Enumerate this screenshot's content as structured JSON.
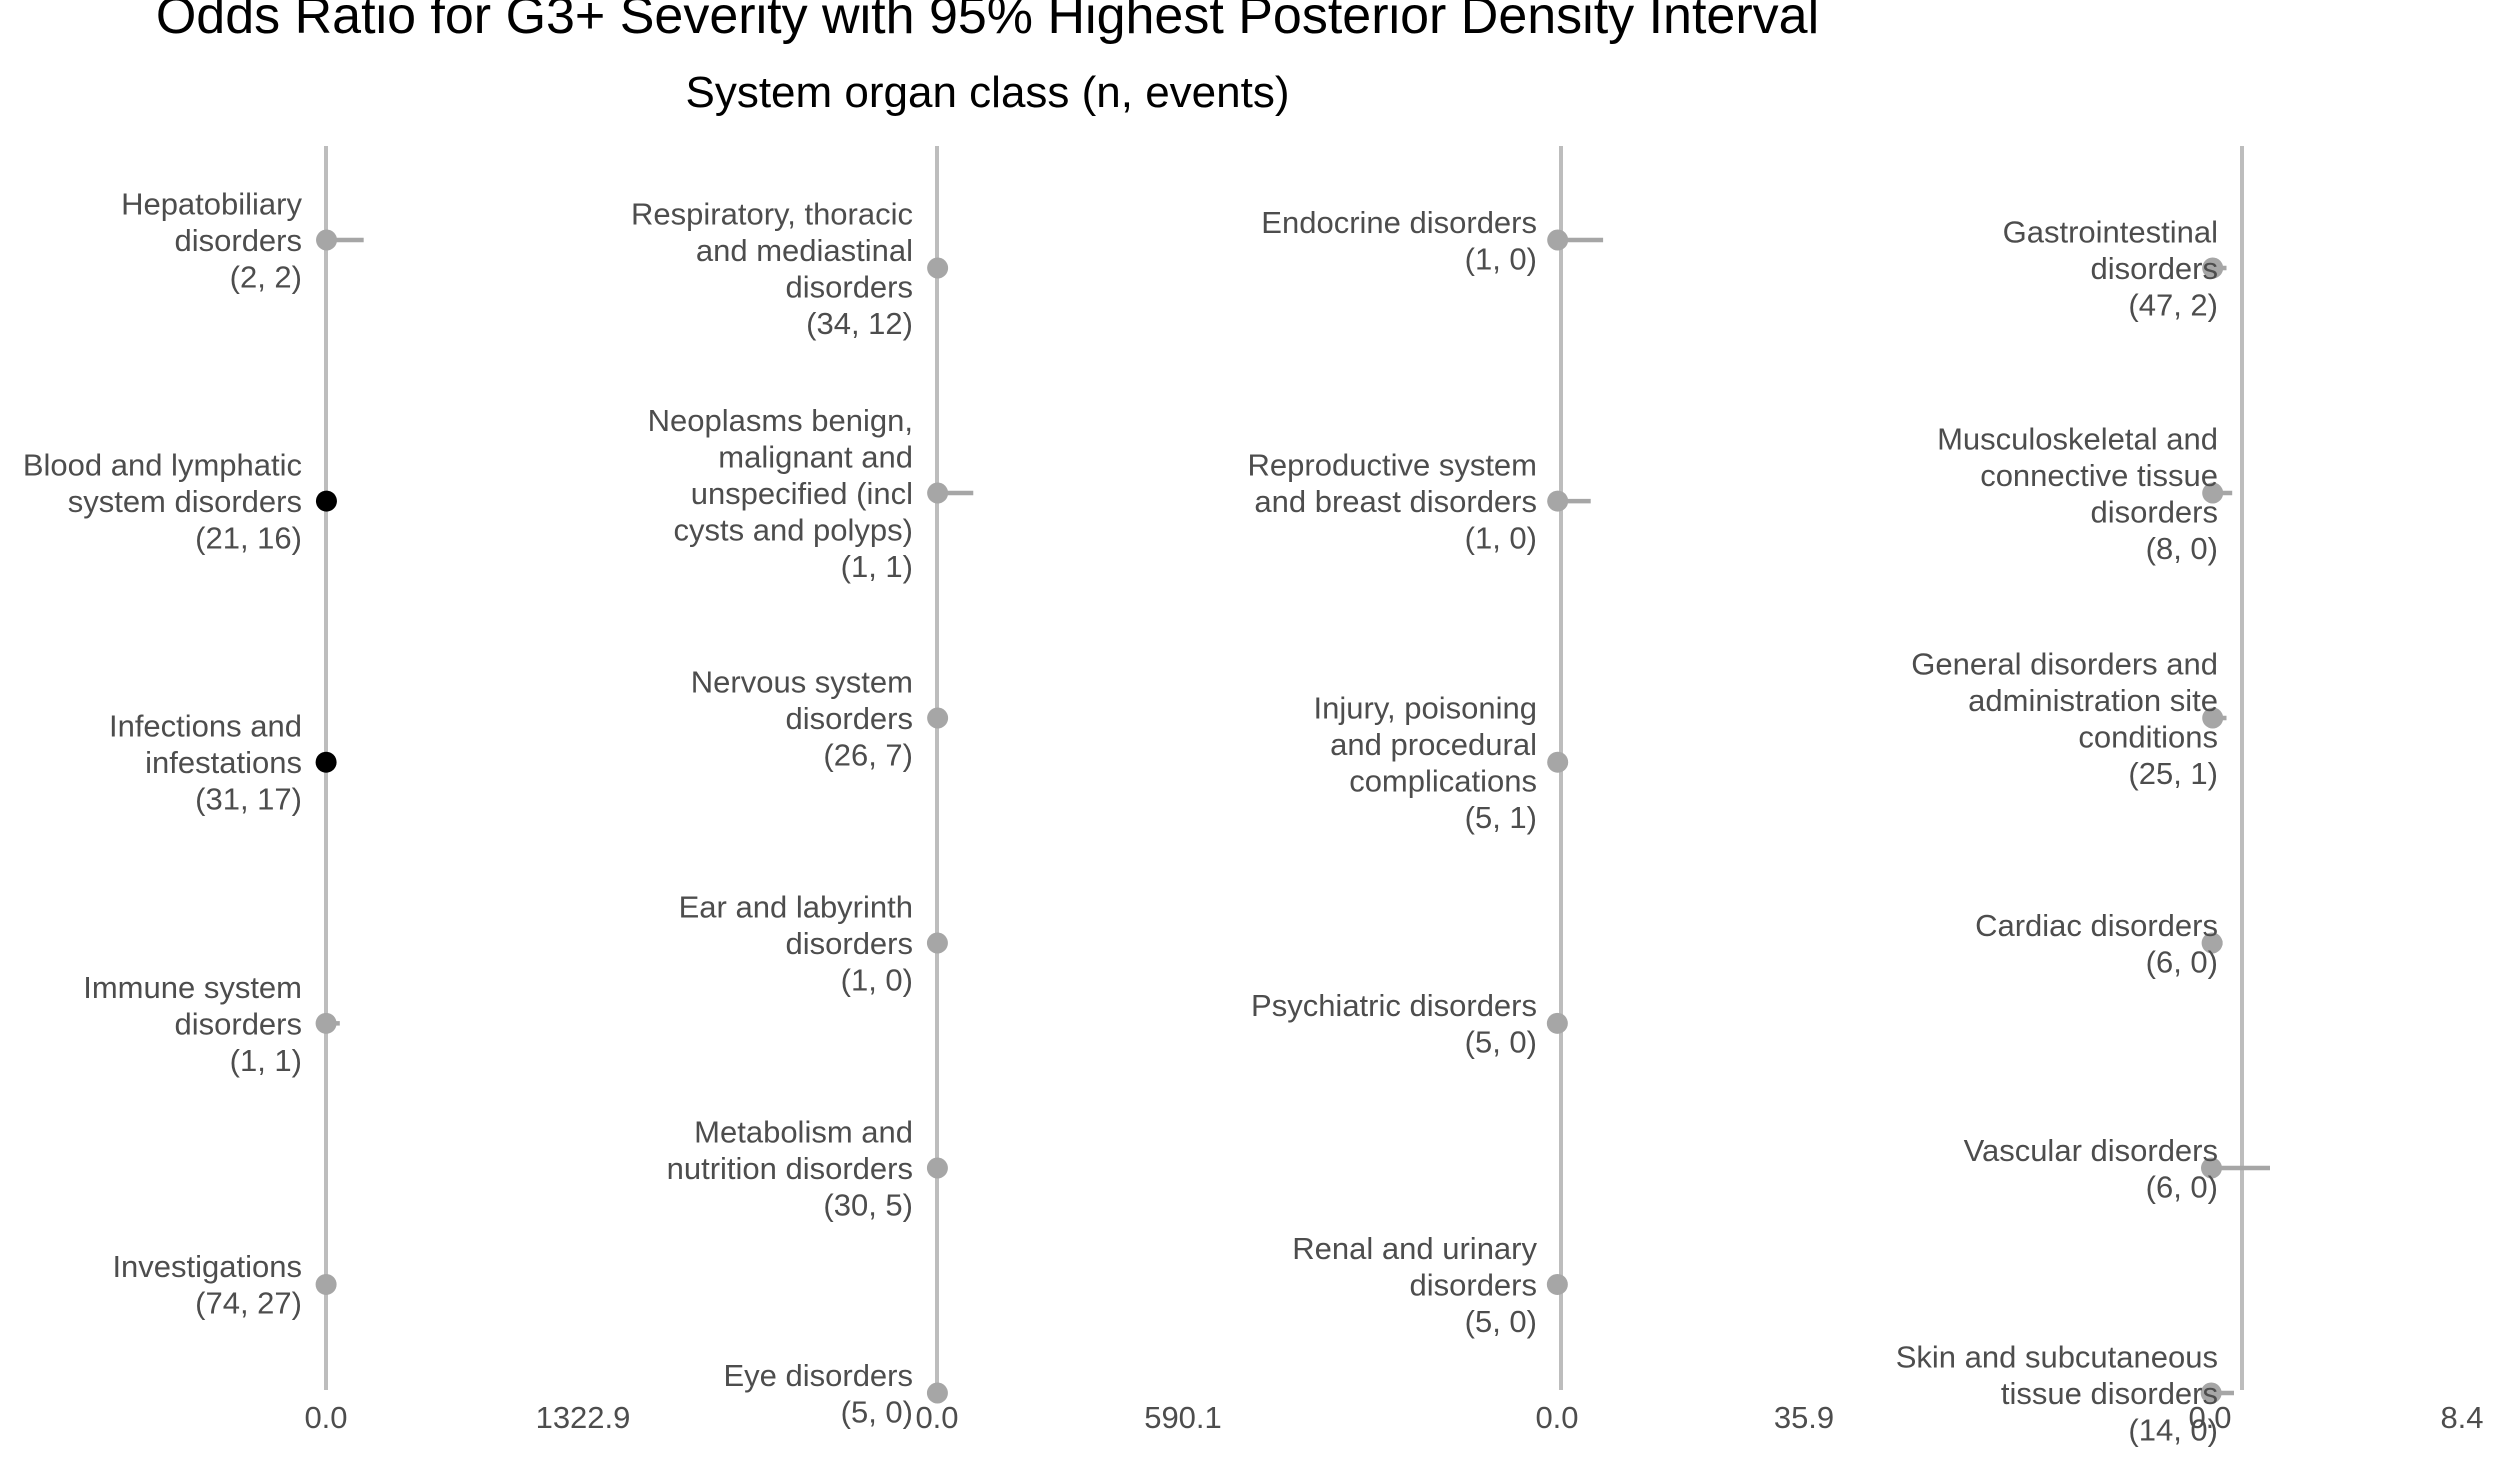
{
  "chart_data": {
    "type": "forest",
    "title": "Odds Ratio for G3+ Severity with 95% Highest Posterior Density Interval",
    "subtitle": "System organ class (n, events)",
    "grid": false,
    "colors": {
      "highlight": "#000000",
      "default": "#a6a6a6",
      "axis": "#bdbdbd",
      "label": "#4d4d4d"
    },
    "panels": [
      {
        "xlim": [
          0.0,
          1322.9
        ],
        "tick_labels": [
          "0.0",
          "1322.9"
        ],
        "items": [
          {
            "label": [
              "Hepatobiliary",
              "disorders",
              "(2, 2)"
            ],
            "or": 2.8,
            "lo": 0,
            "hi": 194.0,
            "highlight": false
          },
          {
            "label": [
              "Blood and lymphatic",
              "system disorders",
              "(21, 16)"
            ],
            "or": 2.3,
            "lo": 0,
            "hi": 25.0,
            "highlight": true
          },
          {
            "label": [
              "Infections and",
              "infestations",
              "(31, 17)"
            ],
            "or": 0.5,
            "lo": 0,
            "hi": 8.0,
            "highlight": true
          },
          {
            "label": [
              "Immune system",
              "disorders",
              "(1, 1)"
            ],
            "or": 0.5,
            "lo": 0,
            "hi": 71.0,
            "highlight": false
          },
          {
            "label": [
              "Investigations",
              "(74, 27)"
            ],
            "or": 0.5,
            "lo": 0,
            "hi": 2.0,
            "highlight": false
          }
        ]
      },
      {
        "xlim": [
          0.0,
          590.1
        ],
        "tick_labels": [
          "0.0",
          "590.1"
        ],
        "items": [
          {
            "label": [
              "Respiratory, thoracic",
              "and mediastinal",
              "disorders",
              "(34, 12)"
            ],
            "or": 1.5,
            "lo": 0,
            "hi": 3.0,
            "highlight": false
          },
          {
            "label": [
              "Neoplasms benign,",
              "malignant and",
              "unspecified (incl",
              "cysts and polyps)",
              "(1, 1)"
            ],
            "or": 1.5,
            "lo": 0,
            "hi": 87.0,
            "highlight": false
          },
          {
            "label": [
              "Nervous system",
              "disorders",
              "(26, 7)"
            ],
            "or": 1.5,
            "lo": 0,
            "hi": 3.0,
            "highlight": false
          },
          {
            "label": [
              "Ear and labyrinth",
              "disorders",
              "(1, 0)"
            ],
            "or": 1.0,
            "lo": 0,
            "hi": 10.0,
            "highlight": false
          },
          {
            "label": [
              "Metabolism and",
              "nutrition disorders",
              "(30, 5)"
            ],
            "or": 1.0,
            "lo": 0,
            "hi": 2.0,
            "highlight": false
          },
          {
            "label": [
              "Eye disorders",
              "(5, 0)"
            ],
            "or": 1.0,
            "lo": 0,
            "hi": 2.0,
            "highlight": false
          }
        ]
      },
      {
        "xlim": [
          0.0,
          35.9
        ],
        "tick_labels": [
          "0.0",
          "35.9"
        ],
        "items": [
          {
            "label": [
              "Endocrine disorders",
              "(1, 0)"
            ],
            "or": 0.1,
            "lo": 0,
            "hi": 6.7,
            "highlight": false
          },
          {
            "label": [
              "Reproductive system",
              "and breast disorders",
              "(1, 0)"
            ],
            "or": 0.1,
            "lo": 0,
            "hi": 4.9,
            "highlight": false
          },
          {
            "label": [
              "Injury, poisoning",
              "and procedural",
              "complications",
              "(5, 1)"
            ],
            "or": 0.1,
            "lo": 0,
            "hi": 1.6,
            "highlight": false
          },
          {
            "label": [
              "Psychiatric disorders",
              "(5, 0)"
            ],
            "or": 0.05,
            "lo": 0,
            "hi": 1.3,
            "highlight": false
          },
          {
            "label": [
              "Renal and urinary",
              "disorders",
              "(5, 0)"
            ],
            "or": 0.05,
            "lo": 0,
            "hi": 1.2,
            "highlight": false
          }
        ]
      },
      {
        "xlim": [
          0.0,
          8.4
        ],
        "tick_labels": [
          "0.0",
          "8.4"
        ],
        "items": [
          {
            "label": [
              "Gastrointestinal",
              "disorders",
              "(47, 2)"
            ],
            "or": 0.09,
            "lo": 0,
            "hi": 0.55,
            "highlight": false
          },
          {
            "label": [
              "Musculoskeletal and",
              "connective tissue",
              "disorders",
              "(8, 0)"
            ],
            "or": 0.09,
            "lo": 0,
            "hi": 0.74,
            "highlight": false
          },
          {
            "label": [
              "General disorders and",
              "administration site",
              "conditions",
              "(25, 1)"
            ],
            "or": 0.09,
            "lo": 0,
            "hi": 0.55,
            "highlight": false
          },
          {
            "label": [
              "Cardiac disorders",
              "(6, 0)"
            ],
            "or": 0.07,
            "lo": 0,
            "hi": 0.42,
            "highlight": false
          },
          {
            "label": [
              "Vascular disorders",
              "(6, 0)"
            ],
            "or": 0.05,
            "lo": 0,
            "hi": 2.0,
            "highlight": false
          },
          {
            "label": [
              "Skin and subcutaneous",
              "tissue disorders",
              "(14, 0)"
            ],
            "or": 0.04,
            "lo": 0,
            "hi": 0.8,
            "highlight": false
          }
        ]
      }
    ]
  }
}
